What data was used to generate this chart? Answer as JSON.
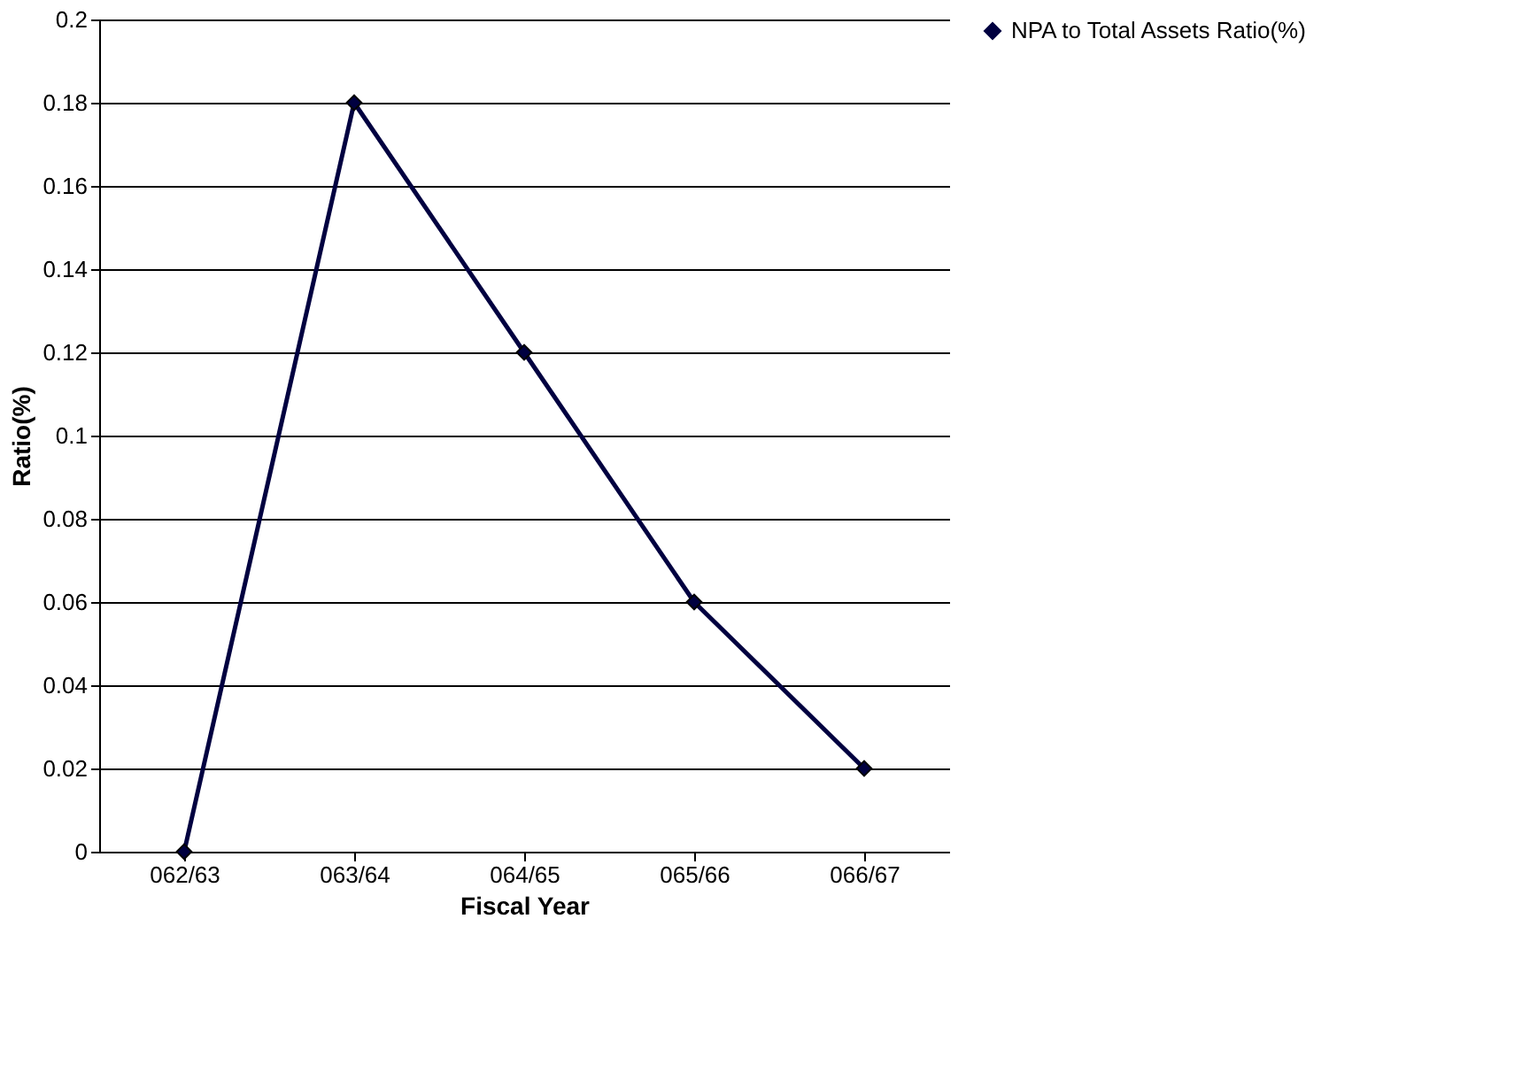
{
  "chart_data": {
    "type": "line",
    "xlabel": "Fiscal Year",
    "ylabel": "Ratio(%)",
    "categories": [
      "062/63",
      "063/64",
      "064/65",
      "065/66",
      "066/67"
    ],
    "series": [
      {
        "name": "NPA to Total Assets Ratio(%)",
        "color": "#000040",
        "values": [
          0,
          0.18,
          0.12,
          0.06,
          0.02
        ]
      }
    ],
    "ylim": [
      0,
      0.2
    ],
    "yticks": [
      0,
      0.02,
      0.04,
      0.06,
      0.08,
      0.1,
      0.12,
      0.14,
      0.16,
      0.18,
      0.2
    ],
    "grid": "y",
    "legend": "right",
    "marker": "diamond",
    "line_style": "solid"
  }
}
